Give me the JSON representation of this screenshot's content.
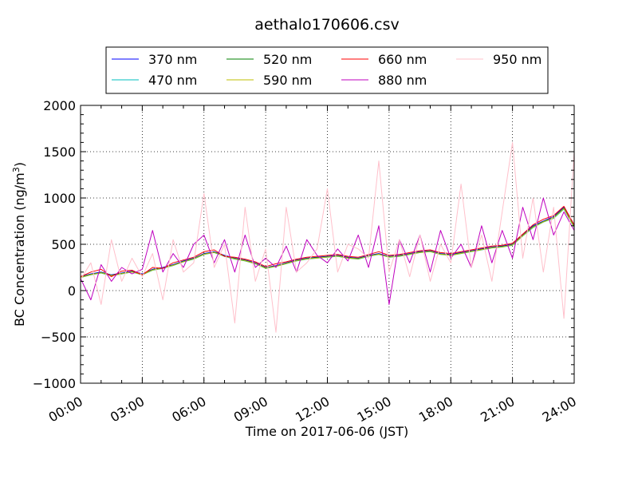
{
  "chart_data": {
    "type": "line",
    "title": "aethalo170606.csv",
    "xlabel": "Time on 2017-06-06 (JST)",
    "ylabel": "BC Concentration (ng/m³)",
    "ylabel_parts": {
      "main": "BC Concentration (ng/m",
      "sup": "3",
      "end": ")"
    },
    "xlim": [
      "00:00",
      "24:00"
    ],
    "ylim": [
      -1000,
      2000
    ],
    "x_ticks": [
      "00:00",
      "03:00",
      "06:00",
      "09:00",
      "12:00",
      "15:00",
      "18:00",
      "21:00",
      "24:00"
    ],
    "y_ticks": [
      -1000,
      -500,
      0,
      500,
      1000,
      1500,
      2000
    ],
    "y_tick_labels": [
      "−1000",
      "−500",
      "0",
      "500",
      "1000",
      "1500",
      "2000"
    ],
    "grid": true,
    "legend_position": "top-center",
    "legend_columns": 4,
    "x_hours": [
      0,
      0.5,
      1,
      1.5,
      2,
      2.5,
      3,
      3.5,
      4,
      4.5,
      5,
      5.5,
      6,
      6.5,
      7,
      7.5,
      8,
      8.5,
      9,
      9.5,
      10,
      10.5,
      11,
      11.5,
      12,
      12.5,
      13,
      13.5,
      14,
      14.5,
      15,
      15.5,
      16,
      16.5,
      17,
      17.5,
      18,
      18.5,
      19,
      19.5,
      20,
      20.5,
      21,
      21.5,
      22,
      22.5,
      23,
      23.5,
      24
    ],
    "series": [
      {
        "name": "370 nm",
        "color": "#0000ff",
        "values": [
          150,
          180,
          200,
          170,
          190,
          210,
          180,
          230,
          250,
          280,
          320,
          350,
          400,
          420,
          380,
          350,
          330,
          300,
          250,
          270,
          300,
          330,
          350,
          360,
          370,
          380,
          360,
          350,
          380,
          400,
          370,
          380,
          400,
          420,
          430,
          400,
          390,
          410,
          430,
          450,
          470,
          480,
          500,
          600,
          700,
          750,
          800,
          900,
          700
        ]
      },
      {
        "name": "470 nm",
        "color": "#00bfbf",
        "values": [
          140,
          170,
          190,
          160,
          180,
          200,
          170,
          220,
          240,
          270,
          310,
          340,
          390,
          410,
          370,
          340,
          320,
          290,
          240,
          260,
          290,
          320,
          340,
          350,
          360,
          370,
          350,
          340,
          370,
          390,
          360,
          370,
          390,
          410,
          420,
          390,
          380,
          400,
          420,
          440,
          460,
          470,
          490,
          590,
          680,
          740,
          780,
          880,
          680
        ]
      },
      {
        "name": "520 nm",
        "color": "#008000",
        "values": [
          145,
          175,
          195,
          165,
          185,
          205,
          175,
          225,
          245,
          275,
          315,
          345,
          395,
          415,
          375,
          345,
          325,
          295,
          245,
          265,
          295,
          325,
          345,
          355,
          365,
          375,
          355,
          345,
          375,
          395,
          365,
          375,
          395,
          415,
          425,
          395,
          385,
          405,
          425,
          445,
          465,
          475,
          495,
          595,
          690,
          745,
          790,
          890,
          690
        ]
      },
      {
        "name": "590 nm",
        "color": "#bfbf00",
        "values": [
          142,
          172,
          192,
          162,
          182,
          202,
          172,
          222,
          242,
          272,
          312,
          342,
          392,
          412,
          372,
          342,
          322,
          292,
          242,
          262,
          292,
          322,
          342,
          352,
          362,
          372,
          352,
          342,
          372,
          392,
          362,
          372,
          392,
          412,
          422,
          392,
          382,
          402,
          422,
          442,
          462,
          472,
          492,
          592,
          685,
          742,
          785,
          885,
          685
        ]
      },
      {
        "name": "660 nm",
        "color": "#ff0000",
        "values": [
          150,
          200,
          230,
          150,
          210,
          220,
          170,
          250,
          240,
          300,
          330,
          360,
          420,
          440,
          370,
          360,
          340,
          310,
          260,
          290,
          310,
          340,
          360,
          370,
          380,
          390,
          370,
          360,
          390,
          420,
          380,
          390,
          410,
          430,
          440,
          410,
          400,
          420,
          440,
          460,
          480,
          490,
          510,
          610,
          710,
          770,
          810,
          910,
          710
        ]
      },
      {
        "name": "880 nm",
        "color": "#bf00bf",
        "values": [
          130,
          -100,
          280,
          100,
          250,
          180,
          230,
          650,
          200,
          400,
          250,
          500,
          600,
          300,
          550,
          200,
          600,
          250,
          350,
          250,
          480,
          200,
          550,
          380,
          300,
          450,
          320,
          600,
          250,
          700,
          -150,
          550,
          300,
          600,
          200,
          650,
          350,
          500,
          250,
          700,
          300,
          650,
          350,
          900,
          550,
          1000,
          600,
          850,
          650
        ]
      },
      {
        "name": "950 nm",
        "color": "#ffc0cb",
        "values": [
          120,
          300,
          -150,
          550,
          100,
          350,
          150,
          400,
          -100,
          550,
          200,
          300,
          1050,
          250,
          500,
          -350,
          900,
          100,
          450,
          -450,
          900,
          200,
          300,
          450,
          1100,
          200,
          500,
          450,
          350,
          1400,
          200,
          550,
          150,
          600,
          100,
          500,
          300,
          1150,
          250,
          600,
          100,
          850,
          1600,
          350,
          1000,
          200,
          900,
          -300,
          1500
        ]
      }
    ]
  }
}
